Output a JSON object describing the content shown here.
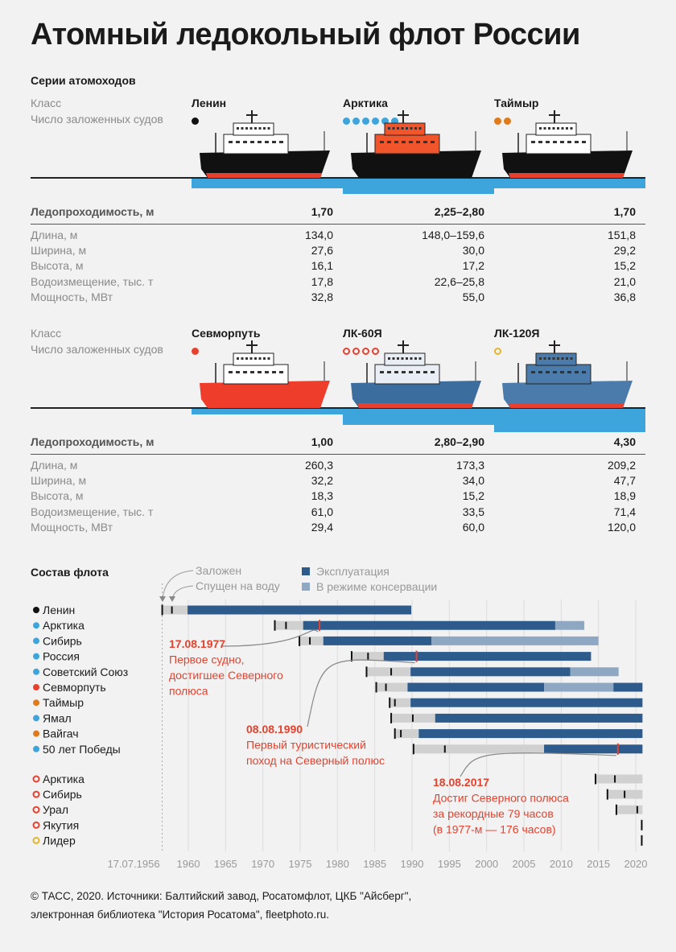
{
  "title": "Атомный ледокольный флот России",
  "series_heading": "Серии атомоходов",
  "labels": {
    "class": "Класс",
    "count": "Число заложенных судов",
    "icebreaking": "Ледопроходимость, м",
    "rows": [
      "Длина, м",
      "Ширина, м",
      "Высота, м",
      "Водоизмещение, тыс. т",
      "Мощность, МВт"
    ]
  },
  "classes_top": [
    {
      "name": "Ленин",
      "count": 1,
      "dot_color": "#111111",
      "dot_style": "filled",
      "icebreaking": "1,70",
      "icebreaking_m": 1.7,
      "hull": "#111111",
      "boot": "#e8402f",
      "super": "#ffffff",
      "values": [
        "134,0",
        "27,6",
        "16,1",
        "17,8",
        "32,8"
      ]
    },
    {
      "name": "Арктика",
      "count": 6,
      "dot_color": "#3da5dc",
      "dot_style": "filled",
      "icebreaking": "2,25–2,80",
      "icebreaking_m": 2.8,
      "hull": "#111111",
      "boot": "#111111",
      "super": "#f0552b",
      "values": [
        "148,0–159,6",
        "30,0",
        "17,2",
        "22,6–25,8",
        "55,0"
      ]
    },
    {
      "name": "Таймыр",
      "count": 2,
      "dot_color": "#e07b1c",
      "dot_style": "filled",
      "icebreaking": "1,70",
      "icebreaking_m": 1.7,
      "hull": "#111111",
      "boot": "#e8402f",
      "super": "#ffffff",
      "values": [
        "151,8",
        "29,2",
        "15,2",
        "21,0",
        "36,8"
      ]
    }
  ],
  "classes_bottom": [
    {
      "name": "Севморпуть",
      "count": 1,
      "dot_color": "#e8402f",
      "dot_style": "filled",
      "icebreaking": "1,00",
      "icebreaking_m": 1.0,
      "hull": "#ee3d2a",
      "boot": "#ee3d2a",
      "super": "#ffffff",
      "values": [
        "260,3",
        "32,2",
        "18,3",
        "61,0",
        "29,4"
      ]
    },
    {
      "name": "ЛК-60Я",
      "count": 4,
      "dot_color": "#e8402f",
      "dot_style": "ring",
      "icebreaking": "2,80–2,90",
      "icebreaking_m": 2.9,
      "hull": "#3b6e9e",
      "boot": "#e8402f",
      "super": "#e9eef4",
      "values": [
        "173,3",
        "34,0",
        "15,2",
        "33,5",
        "60,0"
      ]
    },
    {
      "name": "ЛК-120Я",
      "count": 1,
      "dot_color": "#e6b42a",
      "dot_style": "ring",
      "icebreaking": "4,30",
      "icebreaking_m": 4.3,
      "hull": "#4a7bab",
      "boot": "#e8402f",
      "super": "#4a7bab",
      "values": [
        "209,2",
        "47,7",
        "18,9",
        "71,4",
        "120,0"
      ]
    }
  ],
  "colors": {
    "ice": "#3da5dc",
    "operation": "#2d5b8c",
    "conservation": "#8ea8c3",
    "construction": "#d0d0d0",
    "accent": "#e2432f"
  },
  "chart_data": {
    "type": "bar",
    "orientation": "horizontal-timeline",
    "title": "Состав флота",
    "legend": {
      "laid": "Заложен",
      "launched": "Спущен на воду",
      "operation": "Эксплуатация",
      "conservation": "В режиме консервации"
    },
    "x_ticks": [
      "17.07.1956",
      "1960",
      "1965",
      "1970",
      "1975",
      "1980",
      "1985",
      "1990",
      "1995",
      "2000",
      "2005",
      "2010",
      "2015",
      "2020"
    ],
    "xlim": [
      1956.5,
      2020.9
    ],
    "grid": true,
    "groups": [
      [
        {
          "name": "Ленин",
          "dot_color": "#111111",
          "dot_style": "filled",
          "laid": 1956.5,
          "launched": 1957.8,
          "operation": [
            [
              1959.9,
              1989.9
            ]
          ],
          "conservation": []
        },
        {
          "name": "Арктика",
          "dot_color": "#3da5dc",
          "dot_style": "filled",
          "laid": 1971.6,
          "launched": 1973.1,
          "operation": [
            [
              1975.4,
              2009.2
            ]
          ],
          "conservation": [
            [
              2009.2,
              2013.1
            ]
          ]
        },
        {
          "name": "Сибирь",
          "dot_color": "#3da5dc",
          "dot_style": "filled",
          "laid": 1974.9,
          "launched": 1976.3,
          "operation": [
            [
              1978.1,
              1992.6
            ]
          ],
          "conservation": [
            [
              1992.6,
              2015.0
            ]
          ]
        },
        {
          "name": "Россия",
          "dot_color": "#3da5dc",
          "dot_style": "filled",
          "laid": 1981.9,
          "launched": 1984.1,
          "operation": [
            [
              1986.2,
              2014.0
            ]
          ],
          "conservation": []
        },
        {
          "name": "Советский Союз",
          "dot_color": "#3da5dc",
          "dot_style": "filled",
          "laid": 1983.9,
          "launched": 1987.2,
          "operation": [
            [
              1989.8,
              2011.2
            ]
          ],
          "conservation": [
            [
              2011.2,
              2017.7
            ]
          ]
        },
        {
          "name": "Севморпуть",
          "dot_color": "#e8402f",
          "dot_style": "filled",
          "laid": 1985.2,
          "launched": 1986.5,
          "operation": [
            [
              1989.4,
              2007.7
            ],
            [
              2017.0,
              2020.9
            ]
          ],
          "conservation": [
            [
              2007.7,
              2017.0
            ]
          ]
        },
        {
          "name": "Таймыр",
          "dot_color": "#e07b1c",
          "dot_style": "filled",
          "laid": 1987.0,
          "launched": 1987.7,
          "operation": [
            [
              1989.8,
              2020.9
            ]
          ],
          "conservation": []
        },
        {
          "name": "Ямал",
          "dot_color": "#3da5dc",
          "dot_style": "filled",
          "laid": 1987.2,
          "launched": 1990.1,
          "operation": [
            [
              1993.1,
              2020.9
            ]
          ],
          "conservation": []
        },
        {
          "name": "Вайгач",
          "dot_color": "#e07b1c",
          "dot_style": "filled",
          "laid": 1987.7,
          "launched": 1988.5,
          "operation": [
            [
              1990.9,
              2020.9
            ]
          ],
          "conservation": []
        },
        {
          "name": "50 лет Победы",
          "dot_color": "#3da5dc",
          "dot_style": "filled",
          "laid": 1990.2,
          "launched": 1994.4,
          "operation": [
            [
              2007.7,
              2020.9
            ]
          ],
          "conservation": []
        }
      ],
      [
        {
          "name": "Арктика",
          "dot_color": "#e8402f",
          "dot_style": "ring",
          "laid": 2014.6,
          "launched": 2017.2,
          "operation": [],
          "conservation": []
        },
        {
          "name": "Сибирь",
          "dot_color": "#e8402f",
          "dot_style": "ring",
          "laid": 2016.2,
          "launched": 2018.5,
          "operation": [],
          "conservation": []
        },
        {
          "name": "Урал",
          "dot_color": "#e8402f",
          "dot_style": "ring",
          "laid": 2017.4,
          "launched": 2020.2,
          "operation": [],
          "conservation": []
        },
        {
          "name": "Якутия",
          "dot_color": "#e8402f",
          "dot_style": "ring",
          "laid": 2020.8,
          "launched": null,
          "operation": [],
          "conservation": []
        },
        {
          "name": "Лидер",
          "dot_color": "#e6b42a",
          "dot_style": "ring",
          "laid": 2020.8,
          "launched": null,
          "operation": [],
          "conservation": []
        }
      ]
    ],
    "annotations": [
      {
        "date": "17.08.1977",
        "year": 1977.6,
        "row": 1,
        "lines": [
          "Первое судно,",
          "достигшее Северного",
          "полюса"
        ]
      },
      {
        "date": "08.08.1990",
        "year": 1990.6,
        "row": 3,
        "lines": [
          "Первый туристический",
          "поход на Северный полюс"
        ]
      },
      {
        "date": "18.08.2017",
        "year": 2017.6,
        "row": 9,
        "lines": [
          "Достиг Северного полюса",
          "за рекордные 79 часов",
          "(в 1977-м — 176 часов)"
        ]
      }
    ]
  },
  "footer": [
    "© ТАСС, 2020. Источники: Балтийский завод, Росатомфлот, ЦКБ \"Айсберг\",",
    "электронная библиотека \"История Росатома\", fleetphoto.ru."
  ]
}
